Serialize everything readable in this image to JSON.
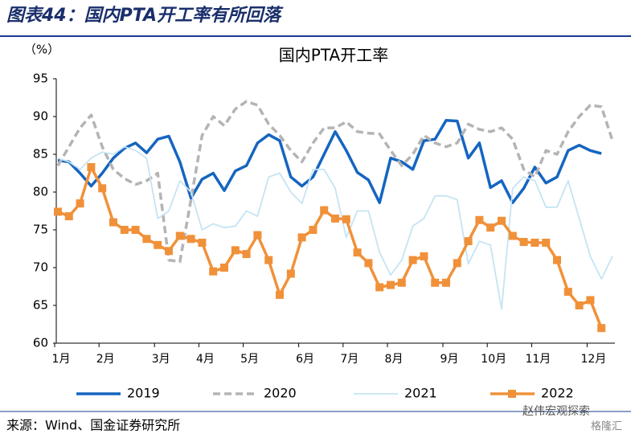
{
  "header": {
    "title": "图表44：国内PTA开工率有所回落"
  },
  "chart_data": {
    "type": "line",
    "title": "国内PTA开工率",
    "y_label": "（%）",
    "categories": [
      "1月",
      null,
      null,
      null,
      "2月",
      null,
      null,
      null,
      null,
      "3月",
      null,
      null,
      null,
      "4月",
      null,
      null,
      null,
      "5月",
      null,
      null,
      null,
      null,
      "6月",
      null,
      null,
      null,
      "7月",
      null,
      null,
      null,
      "8月",
      null,
      null,
      null,
      null,
      "9月",
      null,
      null,
      null,
      "10月",
      null,
      null,
      null,
      "11月",
      null,
      null,
      null,
      null,
      "12月",
      null,
      null
    ],
    "ylim": [
      60,
      95
    ],
    "yticks": [
      60,
      65,
      70,
      75,
      80,
      85,
      90,
      95
    ],
    "grid": false,
    "legend": "bottom",
    "series": [
      {
        "name": "2019",
        "color": "#1565c0",
        "dash": false,
        "marker": null,
        "values": [
          84.2,
          84,
          82.5,
          80.8,
          82.5,
          84.5,
          85.8,
          86.5,
          85.2,
          87,
          87.4,
          84,
          79.2,
          81.7,
          82.5,
          80.2,
          82.8,
          83.5,
          86.5,
          87.6,
          86.8,
          82,
          80.8,
          82,
          85,
          88,
          85.5,
          82.6,
          81.6,
          78.6,
          84.5,
          84,
          83,
          86.8,
          87,
          89.5,
          89.4,
          84.5,
          86.5,
          80.6,
          81.5,
          78.6,
          80.5,
          83.3,
          81.2,
          82,
          85.5,
          86.2,
          85.5,
          85.1,
          null
        ]
      },
      {
        "name": "2020",
        "color": "#b4b4b4",
        "dash": true,
        "marker": null,
        "values": [
          83.5,
          86,
          88.5,
          90.2,
          86,
          83,
          81.8,
          81,
          81.5,
          82.5,
          71,
          70.8,
          79,
          87.5,
          90,
          88.8,
          91,
          92,
          91.5,
          89,
          87.5,
          85.5,
          84,
          86.5,
          88.5,
          88.5,
          89.3,
          88,
          87.8,
          87.7,
          85.5,
          83.5,
          85,
          87.5,
          86.5,
          86,
          86.5,
          89,
          88.3,
          88,
          88.5,
          87,
          83,
          82,
          85.5,
          85,
          88,
          90,
          91.5,
          91.3,
          86.8
        ]
      },
      {
        "name": "2021",
        "color": "#c5e4f3",
        "dash": false,
        "marker": null,
        "values": [
          84.5,
          84,
          83,
          84.5,
          85.3,
          85,
          86,
          85.5,
          84.5,
          76.5,
          77.5,
          81.5,
          80,
          75,
          75.8,
          75.3,
          75.5,
          77.5,
          76.8,
          82,
          82.5,
          80,
          78.5,
          83,
          83,
          80.5,
          74,
          77.5,
          77.5,
          72,
          69,
          71,
          75.5,
          76.5,
          79.5,
          79.5,
          79,
          70.5,
          73.5,
          73,
          64.5,
          80.5,
          82,
          81.5,
          78,
          78,
          81.5,
          76.5,
          71.5,
          68.5,
          71.5
        ]
      },
      {
        "name": "2022",
        "color": "#f0913a",
        "dash": false,
        "marker": "square",
        "values": [
          77.4,
          76.8,
          78.5,
          83.3,
          80.5,
          76,
          75,
          75,
          73.8,
          73,
          72.2,
          74.2,
          73.8,
          73.3,
          69.5,
          70,
          72.3,
          71.8,
          74.3,
          71,
          66.4,
          69.2,
          74,
          75,
          77.6,
          76.5,
          76.4,
          72,
          70.6,
          67.4,
          67.7,
          68,
          71,
          71.5,
          68,
          68,
          70.6,
          73.5,
          76.3,
          75.3,
          76.2,
          74.2,
          73.4,
          73.3,
          73.3,
          71,
          66.8,
          65,
          65.7,
          62,
          null
        ]
      }
    ]
  },
  "footer": {
    "source": "来源：Wind、国金证券研究所",
    "watermark": "赵伟宏观探索",
    "watermark2": "格隆汇"
  }
}
